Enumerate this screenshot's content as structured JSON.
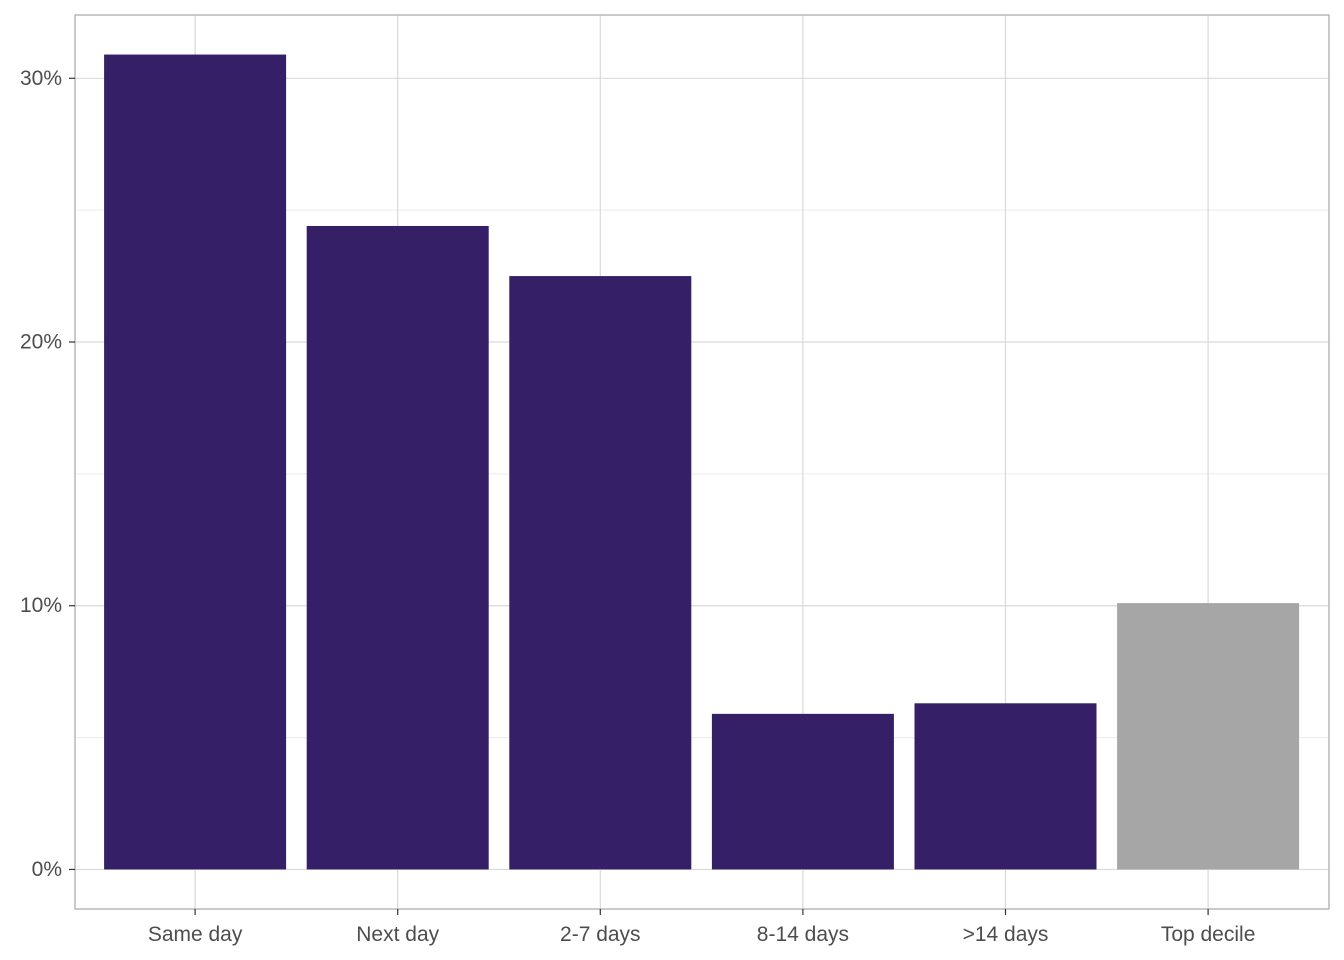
{
  "chart_data": {
    "type": "bar",
    "categories": [
      "Same day",
      "Next day",
      "2-7 days",
      "8-14 days",
      ">14 days",
      "Top decile"
    ],
    "values": [
      30.9,
      24.4,
      22.5,
      5.9,
      6.3,
      10.1
    ],
    "title": "",
    "xlabel": "",
    "ylabel": "",
    "ylim": [
      -1.5,
      32.4
    ],
    "y_ticks": [
      0,
      10,
      20,
      30
    ],
    "y_tick_labels": [
      "0%",
      "10%",
      "20%",
      "30%"
    ],
    "grid": true,
    "legend": "none",
    "colors": {
      "default": "#351F66",
      "highlight": "#A6A6A6",
      "highlight_category": "Top decile",
      "grid_major": "#D9D9D9",
      "grid_minor": "#EBEBEB",
      "panel_border": "#B3B3B3"
    }
  }
}
